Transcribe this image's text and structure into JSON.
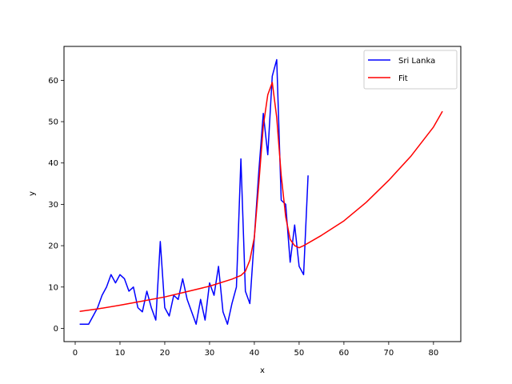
{
  "chart_data": {
    "type": "line",
    "xlabel": "x",
    "ylabel": "y",
    "xlim": [
      -2.5,
      86.1
    ],
    "ylim": [
      -3.2,
      68.2
    ],
    "xticks": [
      0,
      10,
      20,
      30,
      40,
      50,
      60,
      70,
      80
    ],
    "yticks": [
      0,
      10,
      20,
      30,
      40,
      50,
      60
    ],
    "grid": false,
    "legend_position": "top-right",
    "series": [
      {
        "name": "Sri Lanka",
        "color": "#0000ff",
        "x": [
          1,
          2,
          3,
          4,
          5,
          6,
          7,
          8,
          9,
          10,
          11,
          12,
          13,
          14,
          15,
          16,
          17,
          18,
          19,
          20,
          21,
          22,
          23,
          24,
          25,
          26,
          27,
          28,
          29,
          30,
          31,
          32,
          33,
          34,
          35,
          36,
          37,
          38,
          39,
          40,
          41,
          42,
          43,
          44,
          45,
          46,
          47,
          48,
          49,
          50,
          51,
          52
        ],
        "y": [
          1,
          1,
          1,
          3,
          5,
          8,
          10,
          13,
          11,
          13,
          12,
          9,
          10,
          5,
          4,
          9,
          5,
          2,
          21,
          5,
          3,
          8,
          7,
          12,
          7,
          4,
          1,
          7,
          2,
          11,
          8,
          15,
          4,
          1,
          6,
          10,
          41,
          9,
          6,
          22,
          38,
          52,
          42,
          61,
          65,
          31,
          30,
          16,
          25,
          15,
          13,
          37
        ]
      },
      {
        "name": "Fit",
        "color": "#ff0000",
        "x": [
          1,
          5,
          10,
          15,
          20,
          25,
          30,
          35,
          37,
          38,
          39,
          40,
          41,
          42,
          43,
          44,
          45,
          46,
          47,
          48,
          49,
          50,
          51,
          55,
          60,
          65,
          70,
          75,
          80,
          82
        ],
        "y": [
          4.1,
          4.7,
          5.6,
          6.6,
          7.6,
          8.9,
          10.2,
          11.9,
          12.8,
          13.8,
          16.5,
          22,
          35,
          49,
          56.5,
          59.5,
          51,
          37,
          27,
          21.5,
          20,
          19.5,
          20,
          22.5,
          26,
          30.5,
          35.8,
          41.7,
          48.7,
          52.5
        ]
      }
    ]
  }
}
